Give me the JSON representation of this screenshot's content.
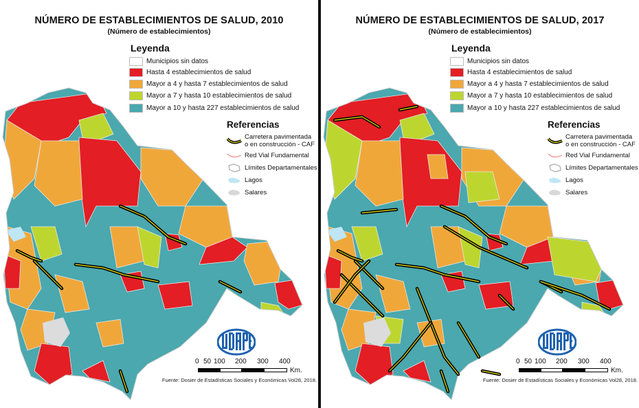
{
  "panels": [
    {
      "title": "NÚMERO DE ESTABLECIMIENTOS DE SALUD, 2010",
      "subtitle": "(Número de establecimientos)",
      "year": "2010"
    },
    {
      "title": "NÚMERO DE ESTABLECIMIENTOS DE SALUD, 2017",
      "subtitle": "(Número de establecimientos)",
      "year": "2017"
    }
  ],
  "legend": {
    "title": "Leyenda",
    "items": [
      {
        "label": "Municipios sin datos",
        "color": "#ffffff"
      },
      {
        "label": "Hasta 4 establecimientos de salud",
        "color": "#e31e24"
      },
      {
        "label": "Mayor a 4 y hasta 7 establecimientos de salud",
        "color": "#f0a73a"
      },
      {
        "label": "Mayor a 7 y hasta 10 establecimientos de salud",
        "color": "#bdd62f"
      },
      {
        "label": "Mayor a 10 y hasta 227 establecimientos de salud",
        "color": "#4aa8ae"
      }
    ]
  },
  "references": {
    "title": "Referencias",
    "items": [
      {
        "label_line1": "Carretera pavimentada",
        "label_line2": "o en construcción - CAF",
        "icon": "paved-road-icon"
      },
      {
        "label_line1": "Red Vial Fundamental",
        "icon": "fundamental-road-icon"
      },
      {
        "label_line1": "Límites Departamentales",
        "icon": "department-boundary-icon"
      },
      {
        "label_line1": "Lagos",
        "icon": "lake-icon"
      },
      {
        "label_line1": "Salares",
        "icon": "salt-flat-icon"
      }
    ]
  },
  "logo_text": "UDAPE",
  "scale": {
    "ticks": [
      "0",
      "50",
      "100",
      "200",
      "300",
      "400"
    ],
    "unit": "Km."
  },
  "source": "Fuente: Dosier de Estadísticas Sociales y Económicas Vol28, 2018."
}
